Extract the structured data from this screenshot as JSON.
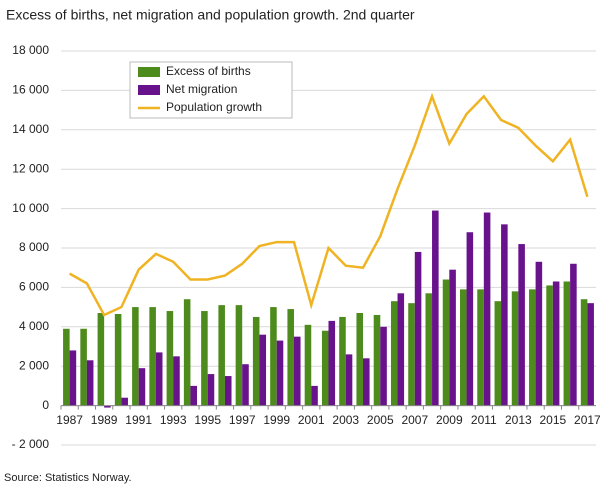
{
  "chart_data": {
    "type": "combo",
    "title": "Excess of births, net migration and population growth. 2nd quarter",
    "source": "Source: Statistics Norway.",
    "categories": [
      "1987",
      null,
      "1989",
      null,
      "1991",
      null,
      "1993",
      null,
      "1995",
      null,
      "1997",
      null,
      "1999",
      null,
      "2001",
      null,
      "2003",
      null,
      "2005",
      null,
      "2007",
      null,
      "2009",
      null,
      "2011",
      null,
      "2013",
      null,
      "2015",
      null,
      "2017"
    ],
    "series": [
      {
        "name": "Excess of births",
        "kind": "bar",
        "color": "#4e8b1d",
        "values": [
          3900,
          3900,
          4700,
          4650,
          5000,
          5000,
          4800,
          5400,
          4800,
          5100,
          5100,
          4500,
          5000,
          4900,
          4100,
          3800,
          4500,
          4700,
          4600,
          5300,
          5200,
          5700,
          6400,
          5900,
          5900,
          5300,
          5800,
          5900,
          6100,
          6300,
          5400
        ]
      },
      {
        "name": "Net migration",
        "kind": "bar",
        "color": "#68128c",
        "values": [
          2800,
          2300,
          -100,
          400,
          1900,
          2700,
          2500,
          1000,
          1600,
          1500,
          2100,
          3600,
          3300,
          3500,
          1000,
          4300,
          2600,
          2400,
          4000,
          5700,
          7800,
          9900,
          6900,
          8800,
          9800,
          9200,
          8200,
          7300,
          6300,
          7200,
          5200
        ]
      },
      {
        "name": "Population growth",
        "kind": "line",
        "color": "#f0b323",
        "values": [
          6700,
          6200,
          4600,
          5000,
          6900,
          7700,
          7300,
          6400,
          6400,
          6600,
          7200,
          8100,
          8300,
          8300,
          5100,
          8000,
          7100,
          7000,
          8600,
          11000,
          13200,
          15700,
          13300,
          14800,
          15700,
          14500,
          14100,
          13200,
          12400,
          13500,
          10600
        ]
      }
    ],
    "ylim": [
      -2000,
      18000
    ],
    "yticks": [
      {
        "value": -2000,
        "label": "- 2 000"
      },
      0,
      {
        "value": 2000,
        "label": "2 000"
      },
      {
        "value": 4000,
        "label": "4 000"
      },
      {
        "value": 6000,
        "label": "6 000"
      },
      {
        "value": 8000,
        "label": "8 000"
      },
      {
        "value": 10000,
        "label": "10 000"
      },
      {
        "value": 12000,
        "label": "12 000"
      },
      {
        "value": 14000,
        "label": "14 000"
      },
      {
        "value": 16000,
        "label": "16 000"
      },
      {
        "value": 18000,
        "label": "18 000"
      }
    ],
    "grid": true,
    "legend": "upper-left"
  }
}
